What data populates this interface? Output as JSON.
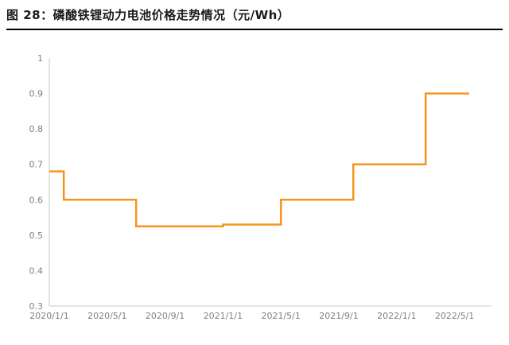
{
  "header": {
    "title": "图 28：磷酸铁锂动力电池价格走势情况（元/Wh）"
  },
  "chart_data": {
    "type": "line",
    "step": "after",
    "title": "图 28：磷酸铁锂动力电池价格走势情况（元/Wh）",
    "xlabel": "",
    "ylabel": "",
    "unit": "元/Wh",
    "grid": false,
    "legend": "none",
    "ylim": [
      0.3,
      1
    ],
    "x": [
      "2020/1",
      "2020/2",
      "2020/3",
      "2020/4",
      "2020/5",
      "2020/6",
      "2020/7",
      "2020/8",
      "2020/9",
      "2020/10",
      "2020/11",
      "2020/12",
      "2021/1",
      "2021/2",
      "2021/3",
      "2021/4",
      "2021/5",
      "2021/6",
      "2021/7",
      "2021/8",
      "2021/9",
      "2021/10",
      "2021/11",
      "2021/12",
      "2022/1",
      "2022/2",
      "2022/3",
      "2022/4",
      "2022/5",
      "2022/6"
    ],
    "values": [
      0.68,
      0.6,
      0.6,
      0.6,
      0.6,
      0.6,
      0.525,
      0.525,
      0.525,
      0.525,
      0.525,
      0.525,
      0.53,
      0.53,
      0.53,
      0.53,
      0.6,
      0.6,
      0.6,
      0.6,
      0.6,
      0.7,
      0.7,
      0.7,
      0.7,
      0.7,
      0.9,
      0.9,
      0.9,
      0.9
    ],
    "x_tick_indices": [
      0,
      4,
      8,
      12,
      16,
      20,
      24,
      28
    ],
    "x_tick_labels": [
      "2020/1/1",
      "2020/5/1",
      "2020/9/1",
      "2021/1/1",
      "2021/5/1",
      "2021/9/1",
      "2022/1/1",
      "2022/5/1"
    ],
    "y_tick_values": [
      0.3,
      0.4,
      0.5,
      0.6,
      0.7,
      0.8,
      0.9,
      1
    ],
    "y_tick_labels": [
      "0.3",
      "0.4",
      "0.5",
      "0.6",
      "0.7",
      "0.8",
      "0.9",
      "1"
    ],
    "line_color": "#F7941E",
    "axis_color": "#C9C9C9",
    "label_color": "#808080"
  }
}
